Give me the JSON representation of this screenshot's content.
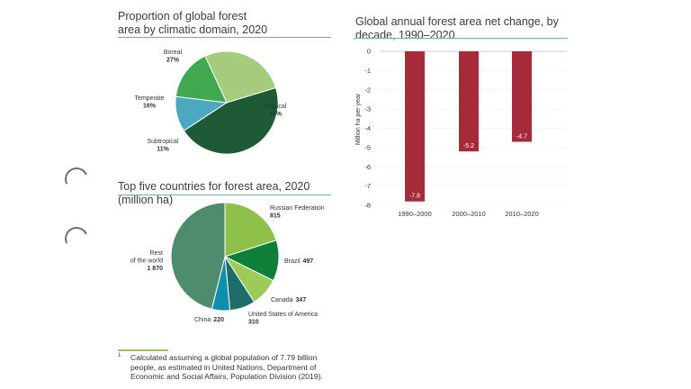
{
  "chart_data": [
    {
      "type": "pie",
      "title": "Proportion of global forest area by climatic domain, 2020",
      "slices": [
        {
          "name": "Boreal",
          "value": 27,
          "label": "27%",
          "color": "#a4cc7c"
        },
        {
          "name": "Tropical",
          "value": 45,
          "label": "45%",
          "color": "#1f5a37"
        },
        {
          "name": "Subtropical",
          "value": 11,
          "label": "11%",
          "color": "#4aa9c0"
        },
        {
          "name": "Temperate",
          "value": 16,
          "label": "16%",
          "color": "#40a84e"
        }
      ]
    },
    {
      "type": "pie",
      "title": "Top five countries for forest area, 2020 (million ha)",
      "slices": [
        {
          "name": "Russian Federation",
          "value": 815,
          "label": "815",
          "color": "#8fc04a"
        },
        {
          "name": "Brazil",
          "value": 497,
          "label": "497",
          "color": "#0f7f3a"
        },
        {
          "name": "Canada",
          "value": 347,
          "label": "347",
          "color": "#9dcb5a"
        },
        {
          "name": "United States of America",
          "value": 310,
          "label": "310",
          "color": "#1e6d68"
        },
        {
          "name": "China",
          "value": 220,
          "label": "220",
          "color": "#0f8fb0"
        },
        {
          "name": "Rest of the world",
          "value": 1870,
          "label": "1 870",
          "color": "#4f8c6d"
        }
      ]
    },
    {
      "type": "bar",
      "title": "Global annual forest area net change, by decade, 1990–2020",
      "categories": [
        "1990–2000",
        "2000–2010",
        "2010–2020"
      ],
      "values": [
        -7.8,
        -5.2,
        -4.7
      ],
      "value_labels": [
        "-7.8",
        "-5.2",
        "-4.7"
      ],
      "ylabel": "Million ha per year",
      "ylim": [
        -8,
        0
      ],
      "yticks": [
        0,
        -1,
        -2,
        -3,
        -4,
        -5,
        -6,
        -7,
        -8
      ],
      "ytick_labels": [
        "0",
        "-1",
        "-2",
        "-3",
        "-4",
        "-5",
        "-6",
        "-7",
        "-8"
      ],
      "bar_color": "#a52a3a",
      "grid": true
    }
  ],
  "footnote": {
    "mark": "1",
    "text": "Calculated assuming a global population of 7.79 billion people, as estimated in United Nations, Department of Economic and Social Affairs, Population Division (2019)."
  }
}
